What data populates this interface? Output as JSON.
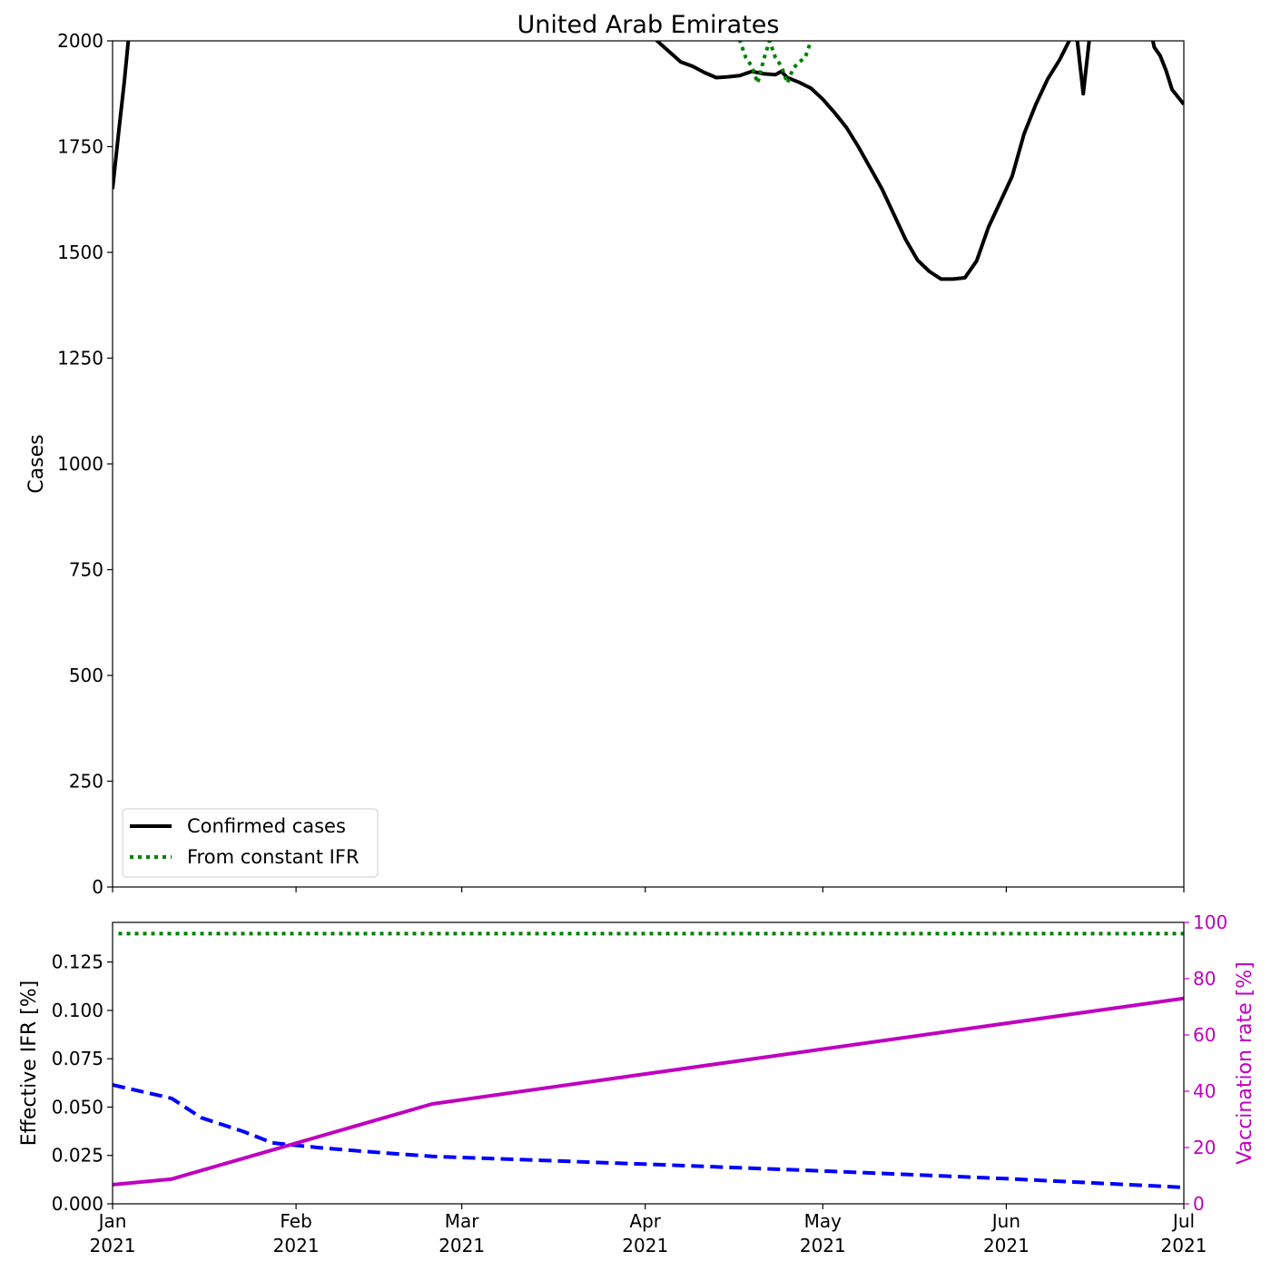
{
  "chart_data": [
    {
      "panel": "cases",
      "type": "line",
      "title": "United Arab Emirates",
      "xlabel": "",
      "ylabel": "Cases",
      "xlim": [
        "2021-01-01",
        "2021-07-01"
      ],
      "ylim": [
        0,
        2000
      ],
      "y_ticks": [
        "0",
        "250",
        "500",
        "750",
        "1000",
        "1250",
        "1500",
        "1750",
        "2000"
      ],
      "grid": false,
      "legend_position": "lower-left",
      "series": [
        {
          "name": "Confirmed cases",
          "color": "#000000",
          "style": "solid",
          "points": [
            [
              "2021-01-01",
              1650
            ],
            [
              "2021-01-02",
              1780
            ],
            [
              "2021-01-03",
              1905
            ],
            [
              "2021-01-04",
              2050
            ],
            [
              "2021-04-01",
              2060
            ],
            [
              "2021-04-03",
              2000
            ],
            [
              "2021-04-05",
              1975
            ],
            [
              "2021-04-07",
              1950
            ],
            [
              "2021-04-09",
              1940
            ],
            [
              "2021-04-11",
              1925
            ],
            [
              "2021-04-13",
              1913
            ],
            [
              "2021-04-15",
              1915
            ],
            [
              "2021-04-17",
              1918
            ],
            [
              "2021-04-19",
              1928
            ],
            [
              "2021-04-21",
              1922
            ],
            [
              "2021-04-23",
              1920
            ],
            [
              "2021-04-24",
              1928
            ],
            [
              "2021-04-25",
              1913
            ],
            [
              "2021-04-27",
              1902
            ],
            [
              "2021-04-29",
              1888
            ],
            [
              "2021-05-01",
              1862
            ],
            [
              "2021-05-03",
              1830
            ],
            [
              "2021-05-05",
              1795
            ],
            [
              "2021-05-07",
              1750
            ],
            [
              "2021-05-09",
              1700
            ],
            [
              "2021-05-11",
              1650
            ],
            [
              "2021-05-13",
              1590
            ],
            [
              "2021-05-15",
              1530
            ],
            [
              "2021-05-17",
              1482
            ],
            [
              "2021-05-19",
              1455
            ],
            [
              "2021-05-21",
              1437
            ],
            [
              "2021-05-23",
              1437
            ],
            [
              "2021-05-25",
              1440
            ],
            [
              "2021-05-27",
              1480
            ],
            [
              "2021-05-29",
              1560
            ],
            [
              "2021-05-31",
              1620
            ],
            [
              "2021-06-02",
              1680
            ],
            [
              "2021-06-04",
              1780
            ],
            [
              "2021-06-06",
              1850
            ],
            [
              "2021-06-08",
              1910
            ],
            [
              "2021-06-10",
              1955
            ],
            [
              "2021-06-12",
              2010
            ],
            [
              "2021-06-13",
              2000
            ],
            [
              "2021-06-14",
              1875
            ],
            [
              "2021-06-15",
              2000
            ],
            [
              "2021-06-16",
              2050
            ],
            [
              "2021-06-25",
              2050
            ],
            [
              "2021-06-26",
              1985
            ],
            [
              "2021-06-27",
              1965
            ],
            [
              "2021-06-28",
              1930
            ],
            [
              "2021-06-29",
              1885
            ],
            [
              "2021-07-01",
              1850
            ]
          ]
        },
        {
          "name": "From constant IFR",
          "color": "#008000",
          "style": "dotted",
          "points": [
            [
              "2021-04-16",
              2060
            ],
            [
              "2021-04-17",
              2000
            ],
            [
              "2021-04-18",
              1960
            ],
            [
              "2021-04-19",
              1940
            ],
            [
              "2021-04-20",
              1900
            ],
            [
              "2021-04-21",
              1955
            ],
            [
              "2021-04-22",
              2000
            ],
            [
              "2021-04-23",
              1960
            ],
            [
              "2021-04-24",
              1940
            ],
            [
              "2021-04-25",
              1900
            ],
            [
              "2021-04-26",
              1935
            ],
            [
              "2021-04-27",
              1950
            ],
            [
              "2021-04-28",
              1960
            ],
            [
              "2021-04-29",
              2000
            ],
            [
              "2021-04-30",
              2060
            ]
          ]
        }
      ],
      "x_tick_labels": [
        {
          "date": "2021-01-01",
          "line1": "Jan",
          "line2": "2021"
        },
        {
          "date": "2021-02-01",
          "line1": "Feb",
          "line2": "2021"
        },
        {
          "date": "2021-03-01",
          "line1": "Mar",
          "line2": "2021"
        },
        {
          "date": "2021-04-01",
          "line1": "Apr",
          "line2": "2021"
        },
        {
          "date": "2021-05-01",
          "line1": "May",
          "line2": "2021"
        },
        {
          "date": "2021-06-01",
          "line1": "Jun",
          "line2": "2021"
        },
        {
          "date": "2021-07-01",
          "line1": "Jul",
          "line2": "2021"
        }
      ]
    },
    {
      "panel": "ifr-vaccination",
      "type": "line",
      "xlim": [
        "2021-01-01",
        "2021-07-01"
      ],
      "left_axis": {
        "label": "Effective IFR [%]",
        "range": [
          0,
          0.1455
        ],
        "ticks": [
          "0.000",
          "0.025",
          "0.050",
          "0.075",
          "0.100",
          "0.125"
        ],
        "color": "#000000"
      },
      "right_axis": {
        "label": "Vaccination rate [%]",
        "range": [
          0,
          100
        ],
        "ticks": [
          "0",
          "20",
          "40",
          "60",
          "80",
          "100"
        ],
        "color": "#bf00bf"
      },
      "grid": false,
      "series": [
        {
          "axis": "left",
          "color": "#0000ff",
          "style": "dashed",
          "points": [
            [
              "2021-01-01",
              0.0615
            ],
            [
              "2021-01-11",
              0.0545
            ],
            [
              "2021-01-16",
              0.0445
            ],
            [
              "2021-01-23",
              0.0375
            ],
            [
              "2021-01-28",
              0.0315
            ],
            [
              "2021-02-05",
              0.029
            ],
            [
              "2021-02-13",
              0.027
            ],
            [
              "2021-02-24",
              0.0245
            ],
            [
              "2021-03-05",
              0.0235
            ],
            [
              "2021-04-01",
              0.0205
            ],
            [
              "2021-05-01",
              0.017
            ],
            [
              "2021-06-01",
              0.013
            ],
            [
              "2021-07-01",
              0.0085
            ]
          ]
        },
        {
          "axis": "right",
          "color": "#bf00bf",
          "style": "solid",
          "points": [
            [
              "2021-01-01",
              6.8
            ],
            [
              "2021-01-11",
              8.8
            ],
            [
              "2021-02-24",
              35.5
            ],
            [
              "2021-07-01",
              73.0
            ]
          ]
        },
        {
          "axis": "right",
          "color": "#008000",
          "style": "dotted",
          "points": [
            [
              "2021-01-02",
              96.0
            ],
            [
              "2021-07-01",
              96.0
            ]
          ]
        }
      ]
    }
  ]
}
